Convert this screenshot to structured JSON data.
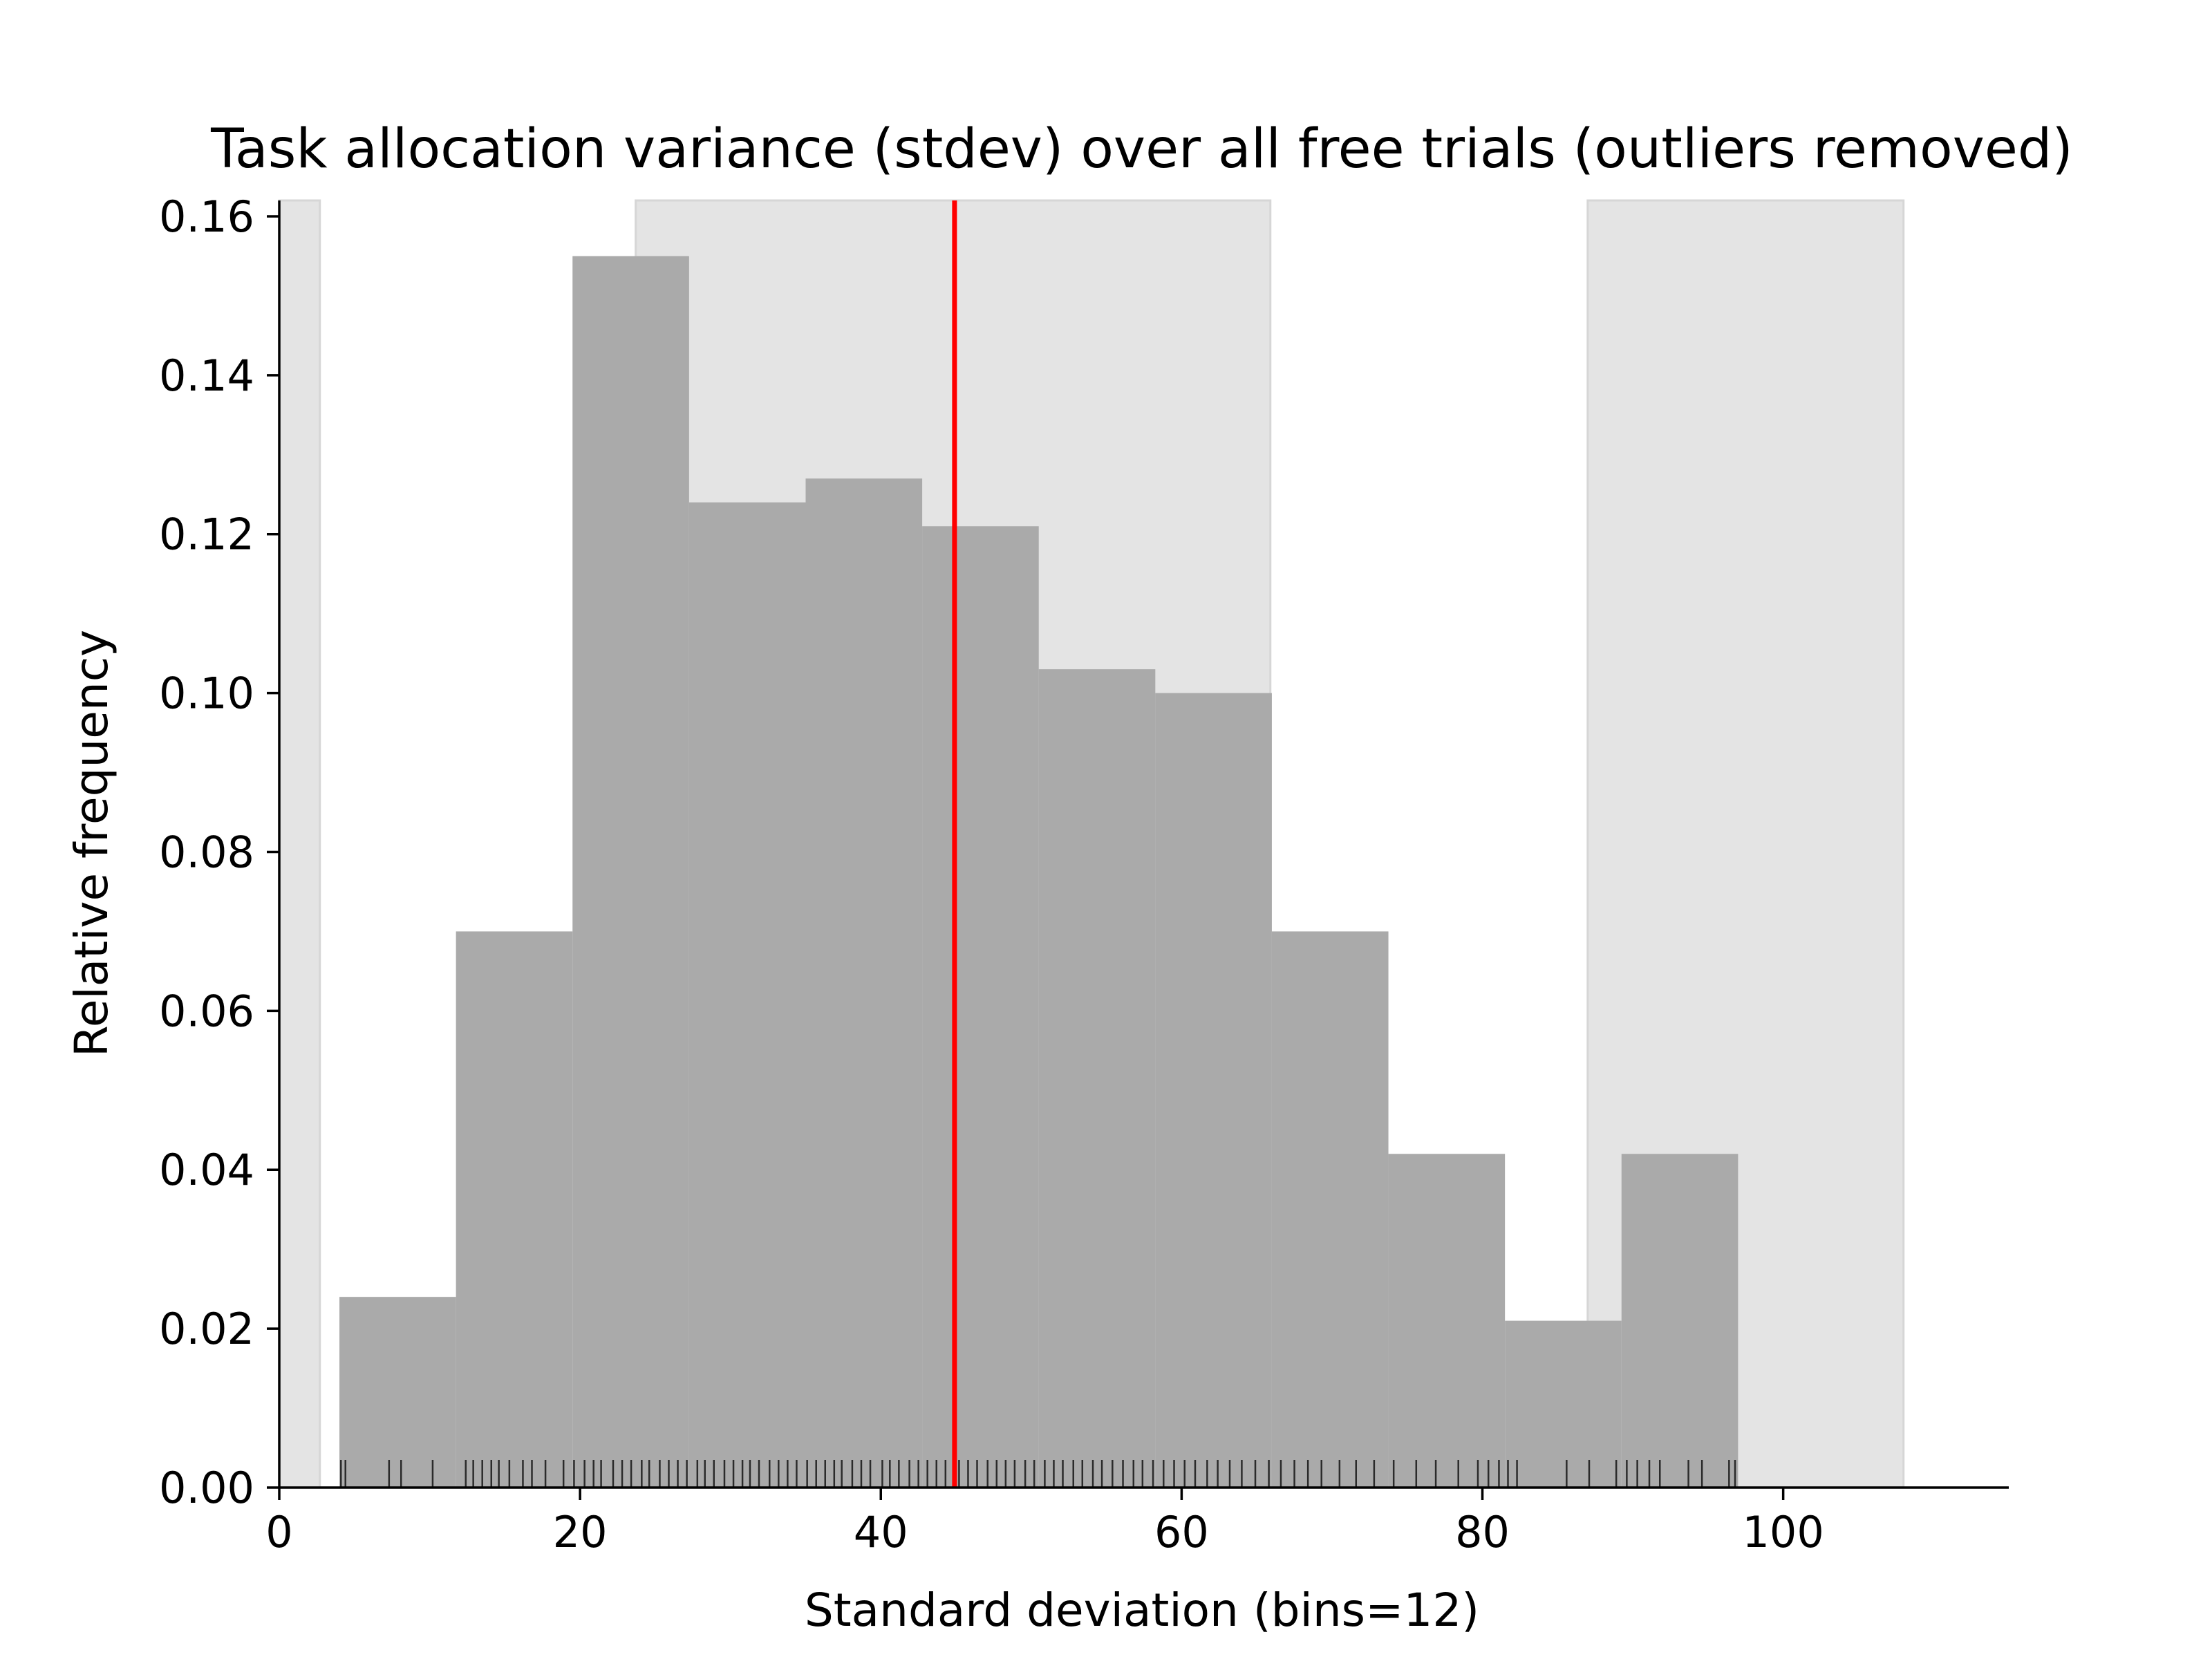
{
  "chart_data": {
    "type": "bar",
    "title": "Task allocation variance (stdev) over all free trials (outliers removed)",
    "xlabel": "Standard deviation (bins=12)",
    "ylabel": "Relative frequency",
    "xlim": [
      0,
      115
    ],
    "ylim": [
      0,
      0.162
    ],
    "x_ticks": [
      "0",
      "20",
      "40",
      "60",
      "80",
      "100"
    ],
    "x_tick_values": [
      0,
      20,
      40,
      60,
      80,
      100
    ],
    "y_ticks": [
      "0.00",
      "0.02",
      "0.04",
      "0.06",
      "0.08",
      "0.10",
      "0.12",
      "0.14",
      "0.16"
    ],
    "y_tick_values": [
      0,
      0.02,
      0.04,
      0.06,
      0.08,
      0.1,
      0.12,
      0.14,
      0.16
    ],
    "grid": false,
    "bin_edges": [
      4.0,
      11.75,
      19.5,
      27.25,
      35.0,
      42.75,
      50.5,
      58.25,
      66.0,
      73.75,
      81.5,
      89.25,
      97.0
    ],
    "values": [
      0.024,
      0.07,
      0.155,
      0.124,
      0.127,
      0.121,
      0.103,
      0.1,
      0.07,
      0.042,
      0.021,
      0.042
    ],
    "bar_color": "#aaaaaa",
    "shaded_regions": [
      [
        0,
        2.7
      ],
      [
        23.7,
        65.9
      ],
      [
        87.0,
        108.0
      ]
    ],
    "shade_color": "#e4e4e4",
    "mean_line": {
      "x": 44.9,
      "color": "#ff0000"
    },
    "rug": [
      4.1,
      4.4,
      7.3,
      8.1,
      10.2,
      12.4,
      12.9,
      13.5,
      14.1,
      14.6,
      15.3,
      16.2,
      16.8,
      17.7,
      18.9,
      19.6,
      20.3,
      20.9,
      21.4,
      22.2,
      22.8,
      23.4,
      24.1,
      24.6,
      25.3,
      25.9,
      26.5,
      27.1,
      27.8,
      28.3,
      28.9,
      29.6,
      30.2,
      30.8,
      31.3,
      31.9,
      32.6,
      33.2,
      33.8,
      34.4,
      35.1,
      35.7,
      36.3,
      36.9,
      37.4,
      38.1,
      38.7,
      39.3,
      40.1,
      40.6,
      41.2,
      41.9,
      42.5,
      43.1,
      43.7,
      44.3,
      45.2,
      45.8,
      46.4,
      47.1,
      47.7,
      48.3,
      48.9,
      49.6,
      50.2,
      50.9,
      51.5,
      52.1,
      52.8,
      53.4,
      54.1,
      54.7,
      55.4,
      56.1,
      56.8,
      57.4,
      58.1,
      58.8,
      59.5,
      60.2,
      60.9,
      61.7,
      62.4,
      63.2,
      64.0,
      64.9,
      65.8,
      66.6,
      67.5,
      68.4,
      69.3,
      70.5,
      71.6,
      72.8,
      74.1,
      75.6,
      76.9,
      78.4,
      79.7,
      80.4,
      81.1,
      81.7,
      82.3,
      85.6,
      87.1,
      88.9,
      89.6,
      90.3,
      91.1,
      91.8,
      93.7,
      94.6,
      96.4,
      96.8
    ]
  }
}
